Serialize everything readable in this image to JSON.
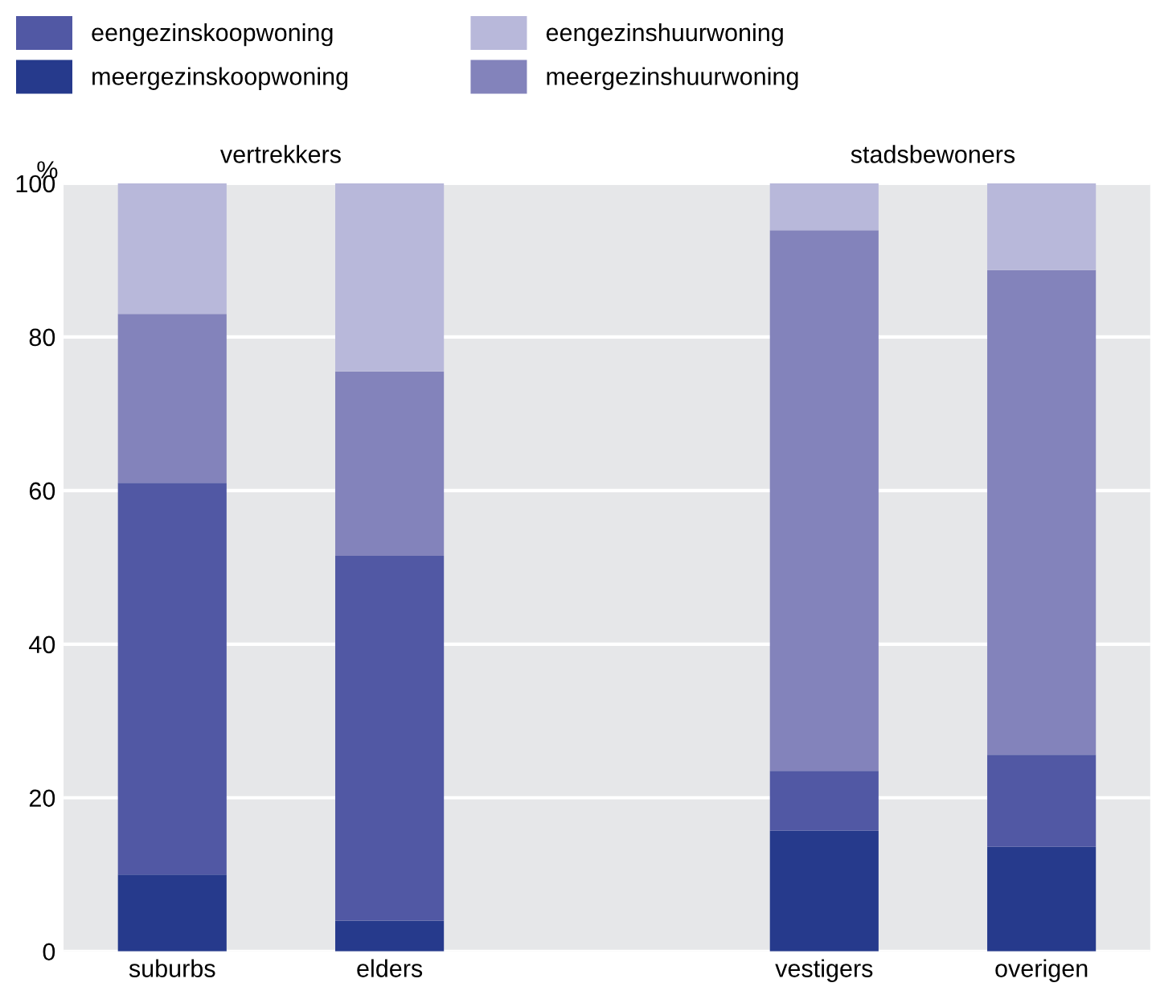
{
  "chart_data": {
    "type": "bar",
    "stacked": true,
    "ylabel": "%",
    "categories": [
      "suburbs",
      "elders",
      null,
      "vestigers",
      "overigen"
    ],
    "series": [
      {
        "name": "meergezinskoopwoning",
        "color": "#263a8c",
        "values": [
          10,
          4,
          null,
          15.7,
          13.6
        ]
      },
      {
        "name": "eengezinskoopwoning",
        "color": "#5158a4",
        "values": [
          51,
          47.5,
          null,
          7.8,
          12
        ]
      },
      {
        "name": "meergezinshuurwoning",
        "color": "#8383bb",
        "values": [
          22,
          24,
          null,
          70.4,
          63.1
        ]
      },
      {
        "name": "eengezinshuurwoning",
        "color": "#b8b8da",
        "values": [
          17,
          24.5,
          null,
          6.1,
          11.3
        ]
      }
    ],
    "annotations": [
      "vertrekkers",
      "stadsbewoners"
    ],
    "ylim": [
      0,
      100
    ],
    "yticks": [
      0,
      20,
      40,
      60,
      80,
      100
    ],
    "grid": "y",
    "legend": "top"
  }
}
